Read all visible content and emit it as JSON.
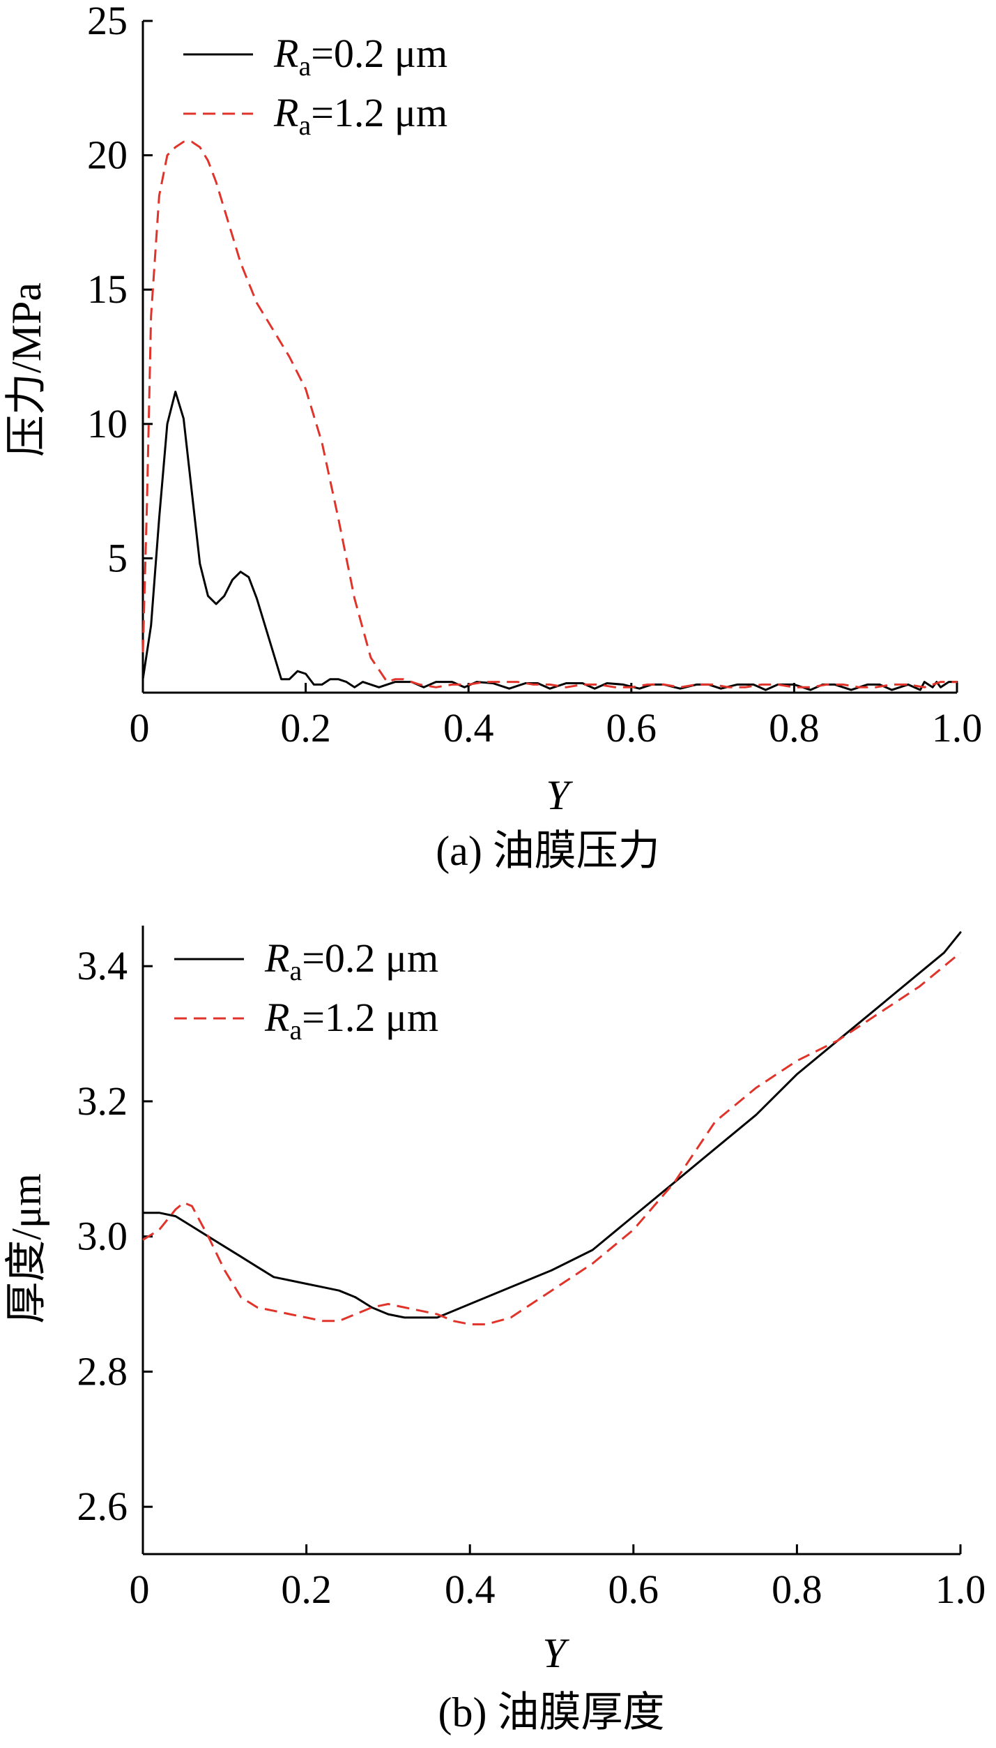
{
  "chart_data": [
    {
      "type": "line",
      "caption": "(a) 油膜压力",
      "xlabel": "Y",
      "ylabel": "压力/MPa",
      "xlim": [
        0,
        1.0
      ],
      "ylim": [
        0,
        25
      ],
      "xticks": [
        "0",
        "0.2",
        "0.4",
        "0.6",
        "0.8",
        "1.0"
      ],
      "xtick_values": [
        0,
        0.2,
        0.4,
        0.6,
        0.8,
        1.0
      ],
      "yticks": [
        "5",
        "10",
        "15",
        "20",
        "25"
      ],
      "ytick_values": [
        5,
        10,
        15,
        20,
        25
      ],
      "legend_position": "top-left",
      "series": [
        {
          "name": "Ra=0.2 μm",
          "legend_symbol": "R",
          "legend_sub": "a",
          "legend_rest": "=0.2 μm",
          "color": "#000000",
          "dash": "solid",
          "x": [
            0.0,
            0.01,
            0.02,
            0.03,
            0.04,
            0.05,
            0.06,
            0.07,
            0.08,
            0.09,
            0.1,
            0.11,
            0.12,
            0.13,
            0.14,
            0.15,
            0.16,
            0.17,
            0.18,
            0.19,
            0.2,
            0.21,
            0.22,
            0.23,
            0.24,
            0.25,
            0.26,
            0.27,
            0.29,
            0.31,
            0.33,
            0.345,
            0.36,
            0.38,
            0.395,
            0.41,
            0.43,
            0.45,
            0.47,
            0.485,
            0.5,
            0.52,
            0.54,
            0.555,
            0.57,
            0.59,
            0.61,
            0.625,
            0.64,
            0.66,
            0.68,
            0.695,
            0.71,
            0.73,
            0.75,
            0.765,
            0.78,
            0.8,
            0.82,
            0.835,
            0.85,
            0.87,
            0.89,
            0.905,
            0.92,
            0.94,
            0.955,
            0.96,
            0.97,
            0.975,
            0.98,
            0.99,
            1.0
          ],
          "y": [
            0.5,
            2.5,
            6.5,
            10.0,
            11.2,
            10.2,
            7.5,
            4.8,
            3.6,
            3.3,
            3.6,
            4.2,
            4.5,
            4.3,
            3.5,
            2.5,
            1.5,
            0.5,
            0.5,
            0.8,
            0.7,
            0.3,
            0.3,
            0.5,
            0.5,
            0.4,
            0.2,
            0.4,
            0.2,
            0.4,
            0.4,
            0.2,
            0.4,
            0.4,
            0.2,
            0.4,
            0.35,
            0.15,
            0.35,
            0.35,
            0.15,
            0.35,
            0.35,
            0.15,
            0.35,
            0.3,
            0.15,
            0.3,
            0.3,
            0.15,
            0.3,
            0.3,
            0.15,
            0.3,
            0.3,
            0.1,
            0.3,
            0.3,
            0.1,
            0.3,
            0.3,
            0.1,
            0.3,
            0.3,
            0.1,
            0.3,
            0.1,
            0.4,
            0.2,
            0.4,
            0.2,
            0.4,
            0.4
          ]
        },
        {
          "name": "Ra=1.2 μm",
          "legend_symbol": "R",
          "legend_sub": "a",
          "legend_rest": "=1.2 μm",
          "color": "#e0332a",
          "dash": "dashed",
          "x": [
            0.0,
            0.005,
            0.01,
            0.02,
            0.03,
            0.04,
            0.05,
            0.06,
            0.07,
            0.08,
            0.09,
            0.1,
            0.12,
            0.14,
            0.15,
            0.16,
            0.18,
            0.2,
            0.22,
            0.24,
            0.26,
            0.28,
            0.3,
            0.31,
            0.32,
            0.33,
            0.34,
            0.36,
            0.38,
            0.4,
            0.42,
            0.44,
            0.46,
            0.48,
            0.5,
            0.52,
            0.54,
            0.56,
            0.58,
            0.6,
            0.62,
            0.64,
            0.66,
            0.68,
            0.7,
            0.72,
            0.74,
            0.76,
            0.78,
            0.8,
            0.82,
            0.84,
            0.86,
            0.88,
            0.9,
            0.92,
            0.94,
            0.96,
            0.98,
            1.0
          ],
          "y": [
            1.5,
            7.0,
            14.0,
            18.5,
            20.0,
            20.3,
            20.5,
            20.5,
            20.3,
            19.8,
            19.0,
            18.0,
            16.0,
            14.5,
            14.0,
            13.5,
            12.5,
            11.3,
            9.3,
            6.5,
            3.5,
            1.3,
            0.4,
            0.5,
            0.5,
            0.4,
            0.3,
            0.2,
            0.3,
            0.3,
            0.4,
            0.4,
            0.4,
            0.3,
            0.3,
            0.2,
            0.3,
            0.3,
            0.2,
            0.2,
            0.3,
            0.3,
            0.2,
            0.3,
            0.3,
            0.2,
            0.2,
            0.3,
            0.3,
            0.2,
            0.2,
            0.3,
            0.3,
            0.2,
            0.2,
            0.3,
            0.3,
            0.2,
            0.4,
            0.4
          ]
        }
      ]
    },
    {
      "type": "line",
      "caption": "(b) 油膜厚度",
      "xlabel": "Y",
      "ylabel": "厚度/μm",
      "xlim": [
        0,
        1.0
      ],
      "ylim": [
        2.53,
        3.46
      ],
      "xticks": [
        "0",
        "0.2",
        "0.4",
        "0.6",
        "0.8",
        "1.0"
      ],
      "xtick_values": [
        0,
        0.2,
        0.4,
        0.6,
        0.8,
        1.0
      ],
      "yticks": [
        "2.6",
        "2.8",
        "3.0",
        "3.2",
        "3.4"
      ],
      "ytick_values": [
        2.6,
        2.8,
        3.0,
        3.2,
        3.4
      ],
      "legend_position": "top-left",
      "series": [
        {
          "name": "Ra=0.2 μm",
          "legend_symbol": "R",
          "legend_sub": "a",
          "legend_rest": "=0.2 μm",
          "color": "#000000",
          "dash": "solid",
          "x": [
            0.0,
            0.02,
            0.04,
            0.06,
            0.08,
            0.1,
            0.12,
            0.14,
            0.16,
            0.18,
            0.2,
            0.22,
            0.24,
            0.26,
            0.28,
            0.3,
            0.32,
            0.34,
            0.36,
            0.38,
            0.4,
            0.45,
            0.5,
            0.55,
            0.6,
            0.65,
            0.7,
            0.75,
            0.8,
            0.85,
            0.9,
            0.95,
            0.98,
            1.0
          ],
          "y": [
            3.035,
            3.035,
            3.03,
            3.015,
            3.0,
            2.985,
            2.97,
            2.955,
            2.94,
            2.935,
            2.93,
            2.925,
            2.92,
            2.91,
            2.895,
            2.885,
            2.88,
            2.88,
            2.88,
            2.89,
            2.9,
            2.925,
            2.95,
            2.98,
            3.03,
            3.08,
            3.13,
            3.18,
            3.24,
            3.29,
            3.34,
            3.39,
            3.42,
            3.45
          ]
        },
        {
          "name": "Ra=1.2 μm",
          "legend_symbol": "R",
          "legend_sub": "a",
          "legend_rest": "=1.2 μm",
          "color": "#e0332a",
          "dash": "dashed",
          "x": [
            0.0,
            0.02,
            0.04,
            0.05,
            0.06,
            0.08,
            0.1,
            0.12,
            0.14,
            0.16,
            0.18,
            0.2,
            0.22,
            0.24,
            0.26,
            0.28,
            0.3,
            0.32,
            0.34,
            0.36,
            0.38,
            0.4,
            0.42,
            0.45,
            0.5,
            0.55,
            0.6,
            0.65,
            0.7,
            0.75,
            0.8,
            0.85,
            0.9,
            0.95,
            1.0
          ],
          "y": [
            2.995,
            3.01,
            3.04,
            3.05,
            3.045,
            3.0,
            2.95,
            2.91,
            2.895,
            2.89,
            2.885,
            2.88,
            2.875,
            2.875,
            2.885,
            2.895,
            2.9,
            2.895,
            2.89,
            2.885,
            2.875,
            2.87,
            2.87,
            2.88,
            2.92,
            2.96,
            3.01,
            3.08,
            3.17,
            3.22,
            3.26,
            3.29,
            3.33,
            3.37,
            3.42
          ]
        }
      ]
    }
  ]
}
